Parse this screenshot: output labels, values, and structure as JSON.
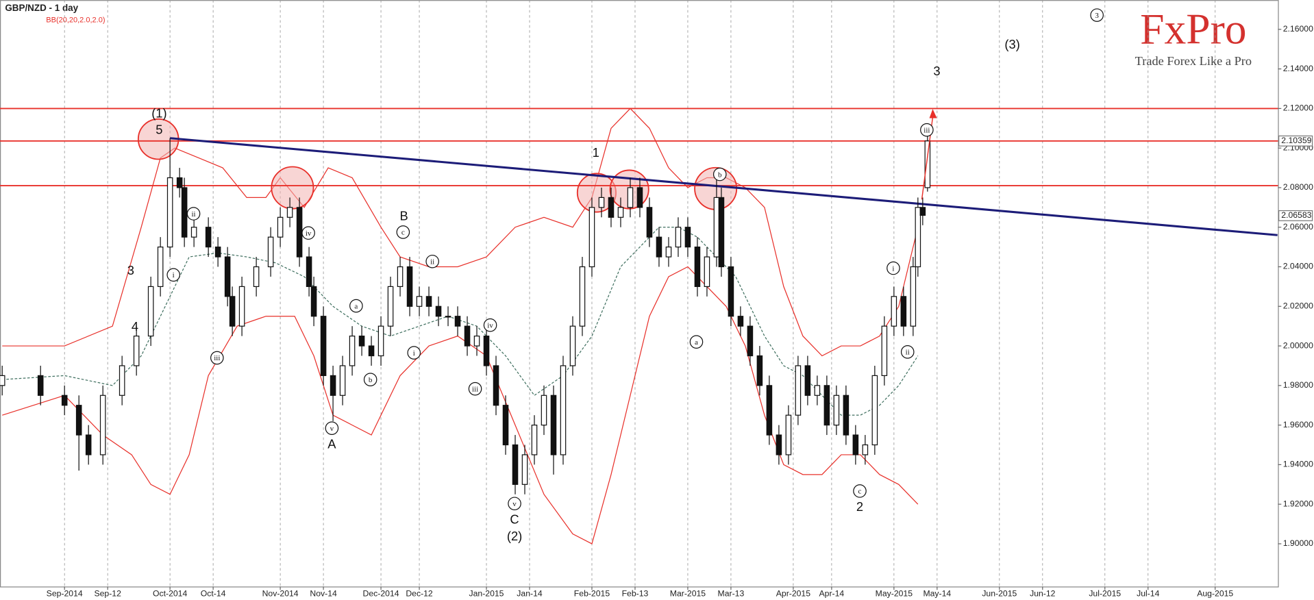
{
  "chart_data": {
    "type": "candlestick",
    "title": "GBP/NZD - 1 day",
    "subtitle": "BB(20,20,2.0,2.0)",
    "brand": "FxPro",
    "tagline": "Trade Forex Like a Pro",
    "xlim": [
      -13.46,
      253.1
    ],
    "ylim": [
      1.8784,
      2.1748
    ],
    "xticks": [
      {
        "value": 0,
        "label": "Sep-2014"
      },
      {
        "value": 9,
        "label": "Sep-12"
      },
      {
        "value": 22,
        "label": "Oct-2014"
      },
      {
        "value": 31,
        "label": "Oct-14"
      },
      {
        "value": 45,
        "label": "Nov-2014"
      },
      {
        "value": 54,
        "label": "Nov-14"
      },
      {
        "value": 66,
        "label": "Dec-2014"
      },
      {
        "value": 74,
        "label": "Dec-12"
      },
      {
        "value": 88,
        "label": "Jan-2015"
      },
      {
        "value": 97,
        "label": "Jan-14"
      },
      {
        "value": 110,
        "label": "Feb-2015"
      },
      {
        "value": 119,
        "label": "Feb-13"
      },
      {
        "value": 130,
        "label": "Mar-2015"
      },
      {
        "value": 139,
        "label": "Mar-13"
      },
      {
        "value": 152,
        "label": "Apr-2015"
      },
      {
        "value": 160,
        "label": "Apr-14"
      },
      {
        "value": 173,
        "label": "May-2015"
      },
      {
        "value": 182,
        "label": "May-14"
      },
      {
        "value": 195,
        "label": "Jun-2015"
      },
      {
        "value": 204,
        "label": "Jun-12"
      },
      {
        "value": 217,
        "label": "Jul-2015"
      },
      {
        "value": 226,
        "label": "Jul-14"
      },
      {
        "value": 240,
        "label": "Aug-2015"
      }
    ],
    "yticks": [
      {
        "value": 1.9,
        "label": "1.90000"
      },
      {
        "value": 1.92,
        "label": "1.92000"
      },
      {
        "value": 1.94,
        "label": "1.94000"
      },
      {
        "value": 1.96,
        "label": "1.96000"
      },
      {
        "value": 1.98,
        "label": "1.98000"
      },
      {
        "value": 2.0,
        "label": "2.00000"
      },
      {
        "value": 2.02,
        "label": "2.02000"
      },
      {
        "value": 2.04,
        "label": "2.04000"
      },
      {
        "value": 2.06,
        "label": "2.06000"
      },
      {
        "value": 2.08,
        "label": "2.08000"
      },
      {
        "value": 2.1,
        "label": "2.10000"
      },
      {
        "value": 2.12,
        "label": "2.12000"
      },
      {
        "value": 2.14,
        "label": "2.14000"
      },
      {
        "value": 2.16,
        "label": "2.16000"
      }
    ],
    "price_labels": [
      2.10359,
      2.06583
    ],
    "x": [
      -13,
      -5,
      0,
      3,
      5,
      8,
      12,
      15,
      18,
      20,
      22,
      24,
      25,
      27,
      30,
      32,
      34,
      35,
      37,
      40,
      43,
      45,
      47,
      49,
      51,
      52,
      54,
      56,
      58,
      60,
      62,
      64,
      66,
      68,
      70,
      72,
      74,
      76,
      78,
      80,
      82,
      84,
      86,
      88,
      90,
      92,
      94,
      96,
      98,
      100,
      102,
      104,
      106,
      108,
      110,
      112,
      114,
      116,
      118,
      120,
      122,
      124,
      126,
      128,
      130,
      132,
      134,
      136,
      137,
      139,
      141,
      143,
      145,
      147,
      149,
      151,
      153,
      155,
      157,
      159,
      161,
      163,
      165,
      167,
      169,
      171,
      173,
      175,
      177,
      178,
      179,
      180
    ],
    "open": [
      1.98,
      1.985,
      1.975,
      1.97,
      1.955,
      1.945,
      1.975,
      1.99,
      2.005,
      2.03,
      2.05,
      2.085,
      2.08,
      2.055,
      2.06,
      2.05,
      2.045,
      2.025,
      2.01,
      2.03,
      2.04,
      2.055,
      2.065,
      2.07,
      2.045,
      2.03,
      2.015,
      1.985,
      1.975,
      1.99,
      2.005,
      2.0,
      1.995,
      2.01,
      2.03,
      2.04,
      2.02,
      2.025,
      2.02,
      2.015,
      2.015,
      2.01,
      2.0,
      2.005,
      1.99,
      1.97,
      1.95,
      1.93,
      1.945,
      1.96,
      1.975,
      1.945,
      1.99,
      2.01,
      2.04,
      2.07,
      2.075,
      2.065,
      2.07,
      2.08,
      2.07,
      2.055,
      2.045,
      2.05,
      2.06,
      2.05,
      2.03,
      2.045,
      2.075,
      2.04,
      2.015,
      2.01,
      1.995,
      1.98,
      1.955,
      1.945,
      1.965,
      1.99,
      1.975,
      1.98,
      1.96,
      1.975,
      1.955,
      1.945,
      1.95,
      1.985,
      2.01,
      2.025,
      2.01,
      2.04,
      2.07,
      2.08
    ],
    "high": [
      1.99,
      1.99,
      1.98,
      1.975,
      1.96,
      1.98,
      1.995,
      2.01,
      2.035,
      2.055,
      2.105,
      2.09,
      2.085,
      2.065,
      2.065,
      2.055,
      2.05,
      2.03,
      2.035,
      2.045,
      2.06,
      2.07,
      2.075,
      2.075,
      2.05,
      2.035,
      2.02,
      1.99,
      1.995,
      2.01,
      2.01,
      2.005,
      2.015,
      2.035,
      2.045,
      2.045,
      2.03,
      2.03,
      2.025,
      2.02,
      2.02,
      2.015,
      2.01,
      2.01,
      1.995,
      1.975,
      1.955,
      1.95,
      1.965,
      1.98,
      1.98,
      1.995,
      2.015,
      2.045,
      2.075,
      2.08,
      2.08,
      2.075,
      2.085,
      2.085,
      2.075,
      2.06,
      2.055,
      2.065,
      2.065,
      2.055,
      2.05,
      2.085,
      2.08,
      2.045,
      2.02,
      2.015,
      2.0,
      1.985,
      1.96,
      1.97,
      1.995,
      1.995,
      1.985,
      1.985,
      1.98,
      1.98,
      1.96,
      1.955,
      1.99,
      2.015,
      2.03,
      2.03,
      2.045,
      2.075,
      2.075,
      2.106
    ],
    "low": [
      1.975,
      1.97,
      1.965,
      1.937,
      1.94,
      1.94,
      1.97,
      1.985,
      2.0,
      2.025,
      2.045,
      2.075,
      2.05,
      2.05,
      2.045,
      2.04,
      2.02,
      2.005,
      2.005,
      2.025,
      2.035,
      2.05,
      2.06,
      2.04,
      2.025,
      2.01,
      1.98,
      1.962,
      1.97,
      1.985,
      1.995,
      1.99,
      1.99,
      2.005,
      2.025,
      2.015,
      2.015,
      2.015,
      2.01,
      2.01,
      2.005,
      1.995,
      1.995,
      1.985,
      1.965,
      1.945,
      1.925,
      1.925,
      1.94,
      1.955,
      1.935,
      1.94,
      1.985,
      2.005,
      2.035,
      2.065,
      2.06,
      2.06,
      2.065,
      2.065,
      2.05,
      2.04,
      2.04,
      2.045,
      2.045,
      2.025,
      2.025,
      2.04,
      2.035,
      2.01,
      2.005,
      1.99,
      1.975,
      1.95,
      1.94,
      1.94,
      1.96,
      1.97,
      1.97,
      1.955,
      1.955,
      1.95,
      1.94,
      1.94,
      1.945,
      1.98,
      2.005,
      2.005,
      2.005,
      2.035,
      2.061,
      2.078
    ],
    "close": [
      1.985,
      1.975,
      1.97,
      1.955,
      1.945,
      1.975,
      1.99,
      2.005,
      2.03,
      2.05,
      2.085,
      2.08,
      2.055,
      2.06,
      2.05,
      2.045,
      2.025,
      2.01,
      2.03,
      2.04,
      2.055,
      2.065,
      2.07,
      2.045,
      2.03,
      2.015,
      1.985,
      1.975,
      1.99,
      2.005,
      2.0,
      1.995,
      2.01,
      2.03,
      2.04,
      2.02,
      2.025,
      2.02,
      2.015,
      2.015,
      2.01,
      2.0,
      2.005,
      1.99,
      1.97,
      1.95,
      1.93,
      1.945,
      1.96,
      1.975,
      1.945,
      1.99,
      2.01,
      2.04,
      2.07,
      2.075,
      2.065,
      2.07,
      2.08,
      2.07,
      2.055,
      2.045,
      2.05,
      2.06,
      2.05,
      2.03,
      2.045,
      2.075,
      2.04,
      2.015,
      2.01,
      1.995,
      1.98,
      1.955,
      1.945,
      1.965,
      1.99,
      1.975,
      1.98,
      1.96,
      1.975,
      1.955,
      1.945,
      1.95,
      1.985,
      2.01,
      2.025,
      2.01,
      2.04,
      2.07,
      2.066,
      2.1036
    ],
    "series": [
      {
        "color": "#e8302a",
        "x": [
          -13,
          0,
          10,
          16,
          20,
          23,
          28,
          33,
          38,
          42,
          45,
          50,
          55,
          60,
          66,
          70,
          76,
          82,
          88,
          94,
          100,
          106,
          110,
          114,
          118,
          122,
          126,
          130,
          134,
          138,
          142,
          146,
          150,
          154,
          158,
          162,
          166,
          170,
          174,
          178
        ],
        "values": [
          2.0,
          2.0,
          2.01,
          2.06,
          2.095,
          2.1,
          2.095,
          2.09,
          2.075,
          2.075,
          2.085,
          2.07,
          2.09,
          2.085,
          2.06,
          2.045,
          2.04,
          2.04,
          2.045,
          2.06,
          2.065,
          2.06,
          2.075,
          2.11,
          2.12,
          2.11,
          2.09,
          2.08,
          2.085,
          2.085,
          2.08,
          2.07,
          2.03,
          2.005,
          1.995,
          2.0,
          2.0,
          2.005,
          2.02,
          2.06
        ]
      },
      {
        "color": "#3f6f5f",
        "dashed": true,
        "x": [
          -13,
          0,
          10,
          16,
          20,
          26,
          32,
          38,
          44,
          50,
          56,
          62,
          68,
          74,
          80,
          86,
          92,
          98,
          104,
          110,
          116,
          120,
          124,
          128,
          132,
          136,
          140,
          146,
          150,
          154,
          158,
          162,
          166,
          170,
          174,
          178
        ],
        "values": [
          1.983,
          1.985,
          1.98,
          1.995,
          2.015,
          2.045,
          2.047,
          2.045,
          2.042,
          2.035,
          2.02,
          2.01,
          2.005,
          2.01,
          2.015,
          2.01,
          1.995,
          1.975,
          1.985,
          2.005,
          2.04,
          2.05,
          2.06,
          2.06,
          2.055,
          2.045,
          2.035,
          2.005,
          1.99,
          1.985,
          1.975,
          1.965,
          1.965,
          1.97,
          1.98,
          1.995
        ]
      },
      {
        "color": "#e8302a",
        "x": [
          -13,
          0,
          8,
          14,
          18,
          22,
          26,
          30,
          36,
          42,
          48,
          52,
          56,
          60,
          64,
          70,
          76,
          82,
          88,
          94,
          100,
          106,
          110,
          114,
          118,
          122,
          126,
          130,
          134,
          138,
          142,
          146,
          150,
          154,
          158,
          162,
          166,
          170,
          174,
          178
        ],
        "values": [
          1.965,
          1.975,
          1.955,
          1.945,
          1.93,
          1.925,
          1.945,
          1.985,
          2.01,
          2.015,
          2.015,
          1.995,
          1.965,
          1.96,
          1.955,
          1.985,
          2.0,
          2.005,
          1.995,
          1.96,
          1.925,
          1.905,
          1.9,
          1.935,
          1.975,
          2.015,
          2.035,
          2.04,
          2.03,
          2.02,
          2.0,
          1.965,
          1.94,
          1.935,
          1.935,
          1.945,
          1.945,
          1.935,
          1.93,
          1.92
        ]
      }
    ],
    "levels": [
      2.12,
      2.1036,
      2.081
    ],
    "level_color": "#e8302a",
    "trendline": {
      "color": "#1c1c78",
      "x": [
        22,
        253
      ],
      "values": [
        2.105,
        2.056
      ]
    },
    "annotations": [
      "(1)",
      "5",
      "3",
      "4",
      "i",
      "ii",
      "iii",
      "iv",
      "v",
      "A",
      "a",
      "b",
      "B",
      "c",
      "ii",
      "i",
      "iv",
      "iii",
      "v",
      "C",
      "(2)",
      "1",
      "b",
      "a",
      "c",
      "2",
      "i",
      "ii",
      "iii",
      "3",
      "(3)",
      "3"
    ]
  }
}
